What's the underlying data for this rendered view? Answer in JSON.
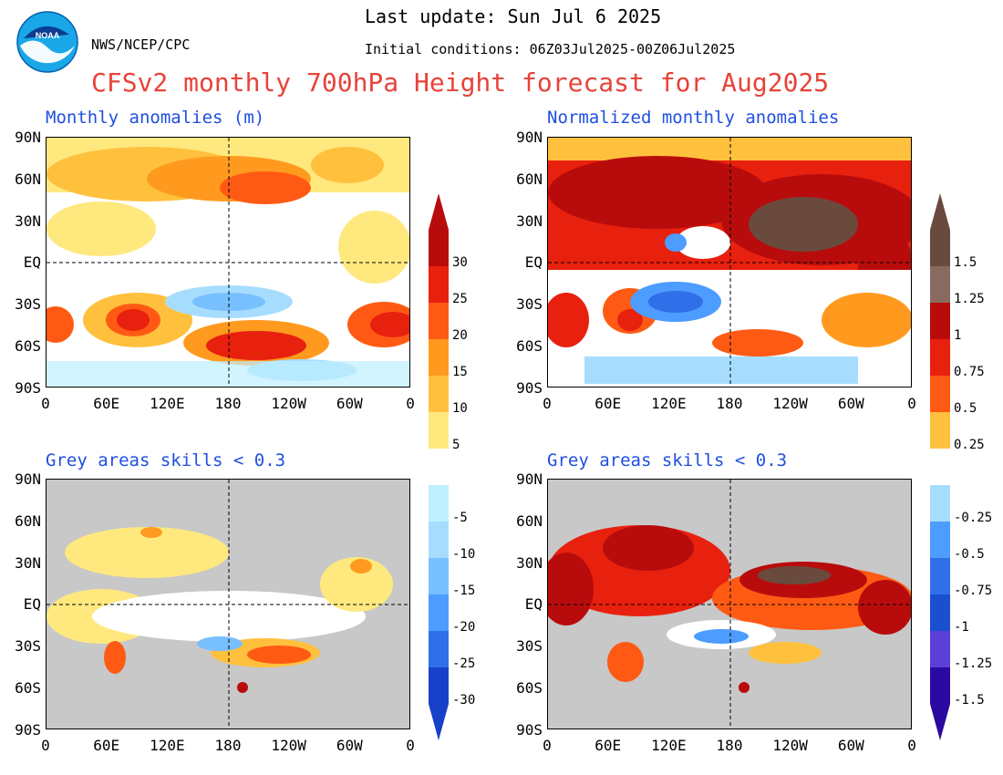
{
  "header": {
    "last_update": "Last update: Sun Jul 6 2025",
    "initial_conditions": "Initial conditions: 06Z03Jul2025-00Z06Jul2025",
    "org": "NWS/NCEP/CPC",
    "title": "CFSv2 monthly 700hPa Height forecast for Aug2025",
    "logo_text": "NOAA"
  },
  "panels": [
    {
      "title": "Monthly anomalies (m)"
    },
    {
      "title": "Normalized monthly anomalies"
    },
    {
      "title": "Grey areas skills < 0.3"
    },
    {
      "title": "Grey areas skills < 0.3"
    }
  ],
  "lat_labels": [
    "90N",
    "60N",
    "30N",
    "EQ",
    "30S",
    "60S",
    "90S"
  ],
  "lon_labels": [
    "0",
    "60E",
    "120E",
    "180",
    "120W",
    "60W",
    "0"
  ],
  "colorbar_left": {
    "labels": [
      "30",
      "25",
      "20",
      "15",
      "10",
      "5",
      "-5",
      "-10",
      "-15",
      "-20",
      "-25",
      "-30"
    ]
  },
  "colorbar_right": {
    "labels": [
      "1.5",
      "1.25",
      "1",
      "0.75",
      "0.5",
      "0.25",
      "-0.25",
      "-0.5",
      "-0.75",
      "-1",
      "-1.25",
      "-1.5"
    ]
  },
  "colors": {
    "title": "#e8433a",
    "panel_title": "#1f4fe0",
    "warm_scale": [
      "#ffe97f",
      "#ffc13d",
      "#ff9a1f",
      "#ff5a14",
      "#e8200e",
      "#b80c0c"
    ],
    "cool_scale": [
      "#bff0ff",
      "#a6ddff",
      "#78bfff",
      "#4d9cff",
      "#2f6fe8",
      "#1840c8"
    ],
    "normalized_warm": [
      "#ffc13d",
      "#ff5a14",
      "#e8200e",
      "#b80c0c",
      "#8a6a60",
      "#6b4a3e"
    ],
    "normalized_cool": [
      "#a6ddff",
      "#4d9cff",
      "#2f6fe8",
      "#1a50d0",
      "#5c3fd6",
      "#2a0aa0"
    ],
    "grey_mask": "#c8c8c8"
  }
}
